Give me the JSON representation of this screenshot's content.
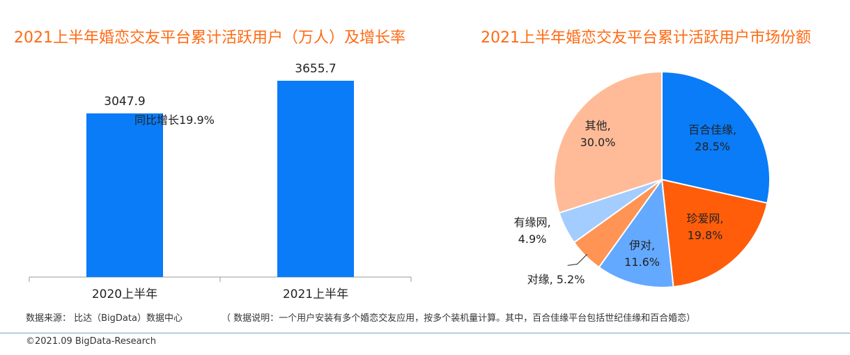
{
  "colors": {
    "title": "#ff6a13",
    "bar": "#0a7cf7"
  },
  "chart_data": [
    {
      "type": "bar",
      "title": "2021上半年婚恋交友平台累计活跃用户（万人）及增长率",
      "categories": [
        "2020上半年",
        "2021上半年"
      ],
      "values": [
        3047.9,
        3655.7
      ],
      "value_labels": [
        "3047.9",
        "3655.7"
      ],
      "annotation": "同比增长19.9%",
      "color": "#0a7cf7"
    },
    {
      "type": "pie",
      "title": "2021上半年婚恋交友平台累计活跃用户市场份额",
      "slices": [
        {
          "name": "百合佳缘",
          "value": 28.5,
          "label": "百合佳缘,",
          "pct": "28.5%",
          "color": "#0a7cf7"
        },
        {
          "name": "珍爱网",
          "value": 19.8,
          "label": "珍爱网,",
          "pct": "19.8%",
          "color": "#ff5d0a"
        },
        {
          "name": "伊对",
          "value": 11.6,
          "label": "伊对,",
          "pct": "11.6%",
          "color": "#63a9ff"
        },
        {
          "name": "对缘",
          "value": 5.2,
          "label": "对缘, 5.2%",
          "pct": "",
          "color": "#ff9455"
        },
        {
          "name": "有缘网",
          "value": 4.9,
          "label": "有缘网,",
          "pct": "4.9%",
          "color": "#a3ccff"
        },
        {
          "name": "其他",
          "value": 30.0,
          "label": "其他,",
          "pct": "30.0%",
          "color": "#ffbb98"
        }
      ]
    }
  ],
  "footer": {
    "source": "数据来源： 比达（BigData）数据中心",
    "note": "（ 数据说明：一个用户安装有多个婚恋交友应用，按多个装机量计算。其中，百合佳缘平台包括世纪佳缘和百合婚恋）",
    "copyright": "©2021.09 BigData-Research"
  }
}
